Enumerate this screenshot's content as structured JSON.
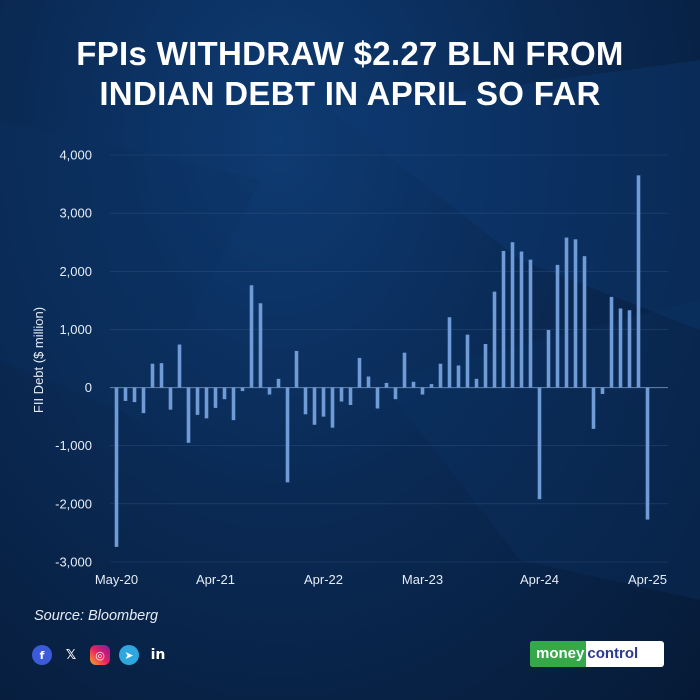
{
  "header": {
    "title_line1": "FPIs WITHDRAW $2.27 BLN FROM",
    "title_line2": "INDIAN DEBT IN APRIL SO FAR"
  },
  "footer": {
    "source": "Source: Bloomberg",
    "brand_part1": "money",
    "brand_part2": "control",
    "social_icons": [
      "facebook-icon",
      "x-icon",
      "instagram-icon",
      "telegram-icon",
      "linkedin-icon"
    ]
  },
  "colors": {
    "bar": "#6f9bd6",
    "background": "#0a2a55",
    "grid": "#3a5b86",
    "brand_green": "#35a84a",
    "brand_blue": "#2b3a8c"
  },
  "chart_data": {
    "type": "bar",
    "ylabel": "FII Debt ($ million)",
    "xlabel": "",
    "ylim": [
      -3000,
      4000
    ],
    "yticks": [
      4000,
      3000,
      2000,
      1000,
      0,
      -1000,
      -2000,
      -3000
    ],
    "ytick_labels": [
      "4,000",
      "3,000",
      "2,000",
      "1,000",
      "0",
      "-1,000",
      "-2,000",
      "-3,000"
    ],
    "xtick_labels": [
      "May-20",
      "Apr-21",
      "Apr-22",
      "Mar-23",
      "Apr-24",
      "Apr-25"
    ],
    "xtick_indices": [
      0,
      11,
      23,
      34,
      47,
      59
    ],
    "grid": true,
    "categories": [
      "May-20",
      "Jun-20",
      "Jul-20",
      "Aug-20",
      "Sep-20",
      "Oct-20",
      "Nov-20",
      "Dec-20",
      "Jan-21",
      "Feb-21",
      "Mar-21",
      "Apr-21",
      "May-21",
      "Jun-21",
      "Jul-21",
      "Aug-21",
      "Sep-21",
      "Oct-21",
      "Nov-21",
      "Dec-21",
      "Jan-22",
      "Feb-22",
      "Mar-22",
      "Apr-22",
      "May-22",
      "Jun-22",
      "Jul-22",
      "Aug-22",
      "Sep-22",
      "Oct-22",
      "Nov-22",
      "Dec-22",
      "Jan-23",
      "Feb-23",
      "Mar-23",
      "Apr-23",
      "May-23",
      "Jun-23",
      "Jul-23",
      "Aug-23",
      "Sep-23",
      "Oct-23",
      "Nov-23",
      "Dec-23",
      "Jan-24",
      "Feb-24",
      "Mar-24",
      "Apr-24",
      "May-24",
      "Jun-24",
      "Jul-24",
      "Aug-24",
      "Sep-24",
      "Oct-24",
      "Nov-24",
      "Dec-24",
      "Jan-25",
      "Feb-25",
      "Mar-25",
      "Apr-25"
    ],
    "values": [
      -2740,
      -230,
      -250,
      -440,
      410,
      420,
      -380,
      740,
      -950,
      -470,
      -530,
      -350,
      -200,
      -560,
      -60,
      1760,
      1450,
      -120,
      150,
      -1630,
      630,
      -460,
      -640,
      -500,
      -690,
      -240,
      -300,
      510,
      190,
      -360,
      80,
      -200,
      600,
      100,
      -120,
      60,
      410,
      1210,
      380,
      910,
      150,
      750,
      1650,
      2350,
      2500,
      2340,
      2200,
      -1920,
      990,
      2110,
      2580,
      2550,
      2260,
      -710,
      -110,
      1560,
      1360,
      1330,
      3650,
      -2270
    ]
  }
}
